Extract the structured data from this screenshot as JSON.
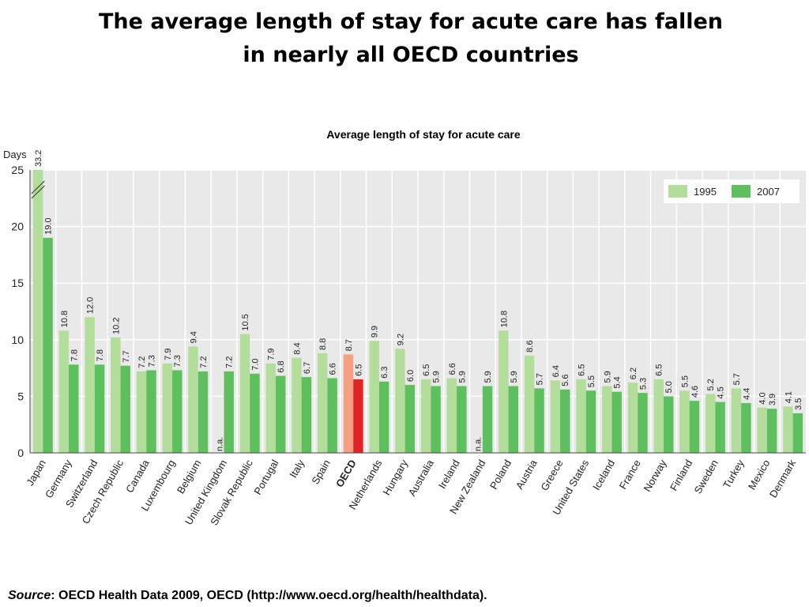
{
  "chart_data": {
    "type": "bar",
    "title": [
      "The average length of stay for acute care has fallen",
      "in nearly all OECD countries"
    ],
    "subtitle": "Average length of stay for acute care",
    "y_label": "Days",
    "categories": [
      "Japan",
      "Germany",
      "Switzerland",
      "Czech Republic",
      "Canada",
      "Luxembourg",
      "Belgium",
      "United Kingdom",
      "Slovak Republic",
      "Portugal",
      "Italy",
      "Spain",
      "OECD",
      "Netherlands",
      "Hungary",
      "Australia",
      "Ireland",
      "New Zealand",
      "Poland",
      "Austria",
      "Greece",
      "United States",
      "Iceland",
      "France",
      "Norway",
      "Finland",
      "Sweden",
      "Turkey",
      "Mexico",
      "Denmark"
    ],
    "highlight": "OECD",
    "series": [
      {
        "name": "1995",
        "color": "#b3dd9a",
        "highlight_color": "#f5a083",
        "values": [
          33.2,
          10.8,
          12.0,
          10.2,
          7.2,
          7.9,
          9.4,
          null,
          10.5,
          7.9,
          8.4,
          8.8,
          8.7,
          9.9,
          9.2,
          6.5,
          6.6,
          null,
          10.8,
          8.6,
          6.4,
          6.5,
          5.9,
          6.2,
          6.5,
          5.5,
          5.2,
          5.7,
          4.0,
          4.1
        ],
        "value_labels": [
          "33.2",
          "10.8",
          "12.0",
          "10.2",
          "7.2",
          "7.9",
          "9.4",
          "n.a.",
          "10.5",
          "7.9",
          "8.4",
          "8.8",
          "8.7",
          "9.9",
          "9.2",
          "6.5",
          "6.6",
          "n.a.",
          "10.8",
          "8.6",
          "6.4",
          "6.5",
          "5.9",
          "6.2",
          "6.5",
          "5.5",
          "5.2",
          "5.7",
          "4.0",
          "4.1"
        ]
      },
      {
        "name": "2007",
        "color": "#5dbf5d",
        "highlight_color": "#e02424",
        "values": [
          19.0,
          7.8,
          7.8,
          7.7,
          7.3,
          7.3,
          7.2,
          7.2,
          7.0,
          6.8,
          6.7,
          6.6,
          6.5,
          6.3,
          6.0,
          5.9,
          5.9,
          5.9,
          5.9,
          5.7,
          5.6,
          5.5,
          5.4,
          5.3,
          5.0,
          4.6,
          4.5,
          4.4,
          3.9,
          3.5
        ],
        "value_labels": [
          "19.0",
          "7.8",
          "7.8",
          "7.7",
          "7.3",
          "7.3",
          "7.2",
          "7.2",
          "7.0",
          "6.8",
          "6.7",
          "6.6",
          "6.5",
          "6.3",
          "6.0",
          "5.9",
          "5.9",
          "5.9",
          "5.9",
          "5.7",
          "5.6",
          "5.5",
          "5.4",
          "5.3",
          "5.0",
          "4.6",
          "4.5",
          "4.4",
          "3.9",
          "3.5"
        ]
      }
    ],
    "ylim": [
      0,
      25
    ],
    "yticks": [
      0,
      5,
      10,
      15,
      20,
      25
    ],
    "grid": true,
    "legend": "top-right",
    "source_label": "Source",
    "source_text": ": OECD Health Data 2009, OECD (http://www.oecd.org/health/healthdata)."
  }
}
